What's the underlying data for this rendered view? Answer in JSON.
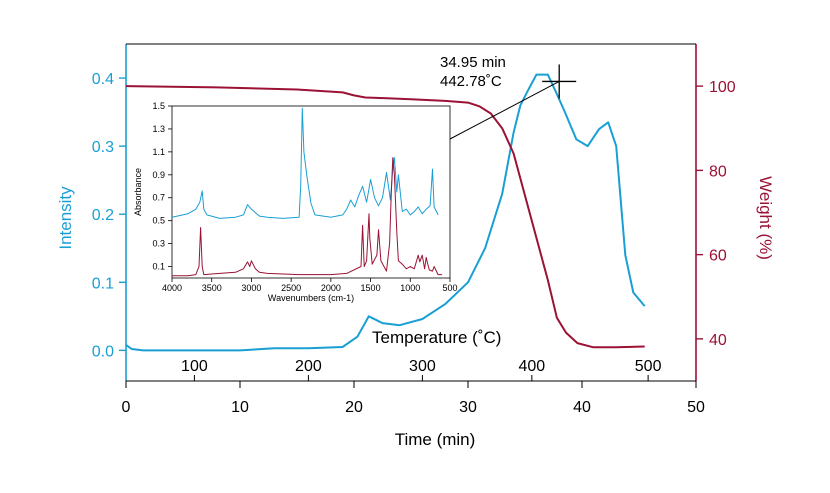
{
  "colors": {
    "intensity": "#1a9fd4",
    "weight": "#9b1235",
    "axis_black": "#000000"
  },
  "chart_data": [
    {
      "type": "line",
      "role": "main",
      "xlabel": "Time (min)",
      "xlim": [
        0,
        50
      ],
      "x_ticks": [
        0,
        10,
        20,
        30,
        40,
        50
      ],
      "secondary_xlabel": "Temperature (˚C)",
      "secondary_x_ticks": [
        {
          "label": "100",
          "time": 6
        },
        {
          "label": "200",
          "time": 16
        },
        {
          "label": "300",
          "time": 26
        },
        {
          "label": "400",
          "time": 35.6
        },
        {
          "label": "500",
          "time": 45.8
        }
      ],
      "ylabel_left": "Intensity",
      "ylim_left": [
        -0.045,
        0.45
      ],
      "y_ticks_left": [
        "0.0",
        "0.1",
        "0.2",
        "0.3",
        "0.4"
      ],
      "ylabel_right": "Weight (%)",
      "ylim_right": [
        30,
        110
      ],
      "y_ticks_right": [
        "40",
        "60",
        "80",
        "100"
      ],
      "series": [
        {
          "name": "Intensity",
          "axis": "left",
          "x": [
            0,
            0.5,
            1.5,
            5,
            10,
            13,
            16,
            19,
            20.3,
            21.3,
            22.5,
            24,
            26,
            28,
            30,
            31.5,
            33,
            34,
            34.6,
            35.2,
            36,
            37,
            37.7,
            38.5,
            39.5,
            40.5,
            41.5,
            42.3,
            43,
            43.8,
            44.5,
            45.5
          ],
          "y": [
            0.008,
            0.002,
            0.0,
            0.0,
            0.0,
            0.003,
            0.003,
            0.005,
            0.02,
            0.05,
            0.04,
            0.037,
            0.046,
            0.068,
            0.1,
            0.15,
            0.23,
            0.32,
            0.36,
            0.38,
            0.405,
            0.405,
            0.38,
            0.35,
            0.31,
            0.3,
            0.325,
            0.335,
            0.3,
            0.14,
            0.085,
            0.065
          ]
        },
        {
          "name": "Weight",
          "axis": "right",
          "x": [
            0,
            8,
            15,
            19,
            20,
            21,
            22,
            25,
            28,
            30,
            31,
            32,
            33,
            34,
            35,
            36,
            37,
            37.8,
            38.6,
            39.6,
            41,
            43,
            45.5
          ],
          "y": [
            100,
            99.7,
            99.2,
            98.5,
            97.8,
            97.3,
            97.2,
            96.9,
            96.5,
            96.1,
            95.2,
            93.5,
            90,
            84,
            74,
            64,
            54,
            45,
            41.5,
            39,
            38,
            38,
            38.2
          ]
        }
      ],
      "annotations": [
        {
          "text": "34.95 min",
          "line": 1
        },
        {
          "text": "442.78˚C",
          "line": 2
        }
      ],
      "marker_at": {
        "time": 38.0,
        "intensity": 0.395
      }
    },
    {
      "type": "line",
      "role": "inset",
      "ylabel": "Absorbance",
      "xlabel": "Wavenumbers (cm-1)",
      "xlim": [
        4000,
        500
      ],
      "x_ticks": [
        "4000",
        "3500",
        "3000",
        "2500",
        "2000",
        "1500",
        "1000",
        "500"
      ],
      "ylim": [
        0,
        1.5
      ],
      "y_ticks": [
        "0.1",
        "0.3",
        "0.5",
        "0.7",
        "0.9",
        "1.1",
        "1.3",
        "1.5"
      ],
      "series": [
        {
          "name": "",
          "color": "intensity",
          "x": [
            4000,
            3800,
            3700,
            3650,
            3620,
            3600,
            3560,
            3400,
            3200,
            3100,
            3050,
            3000,
            2950,
            2900,
            2800,
            2600,
            2400,
            2380,
            2360,
            2340,
            2300,
            2250,
            2200,
            2000,
            1850,
            1800,
            1750,
            1700,
            1650,
            1600,
            1550,
            1500,
            1450,
            1400,
            1350,
            1300,
            1250,
            1220,
            1200,
            1170,
            1150,
            1100,
            1050,
            1000,
            950,
            900,
            850,
            800,
            750,
            720,
            700,
            650
          ],
          "y": [
            0.53,
            0.56,
            0.6,
            0.66,
            0.76,
            0.6,
            0.55,
            0.52,
            0.53,
            0.55,
            0.64,
            0.6,
            0.57,
            0.54,
            0.53,
            0.52,
            0.53,
            0.8,
            1.48,
            1.1,
            0.88,
            0.65,
            0.55,
            0.53,
            0.55,
            0.6,
            0.68,
            0.62,
            0.72,
            0.8,
            0.66,
            0.86,
            0.7,
            0.63,
            0.7,
            0.92,
            0.68,
            0.95,
            1.05,
            0.75,
            0.9,
            0.58,
            0.6,
            0.55,
            0.58,
            0.62,
            0.56,
            0.6,
            0.63,
            0.95,
            0.62,
            0.55
          ]
        },
        {
          "name": "",
          "color": "weight",
          "x": [
            4000,
            3800,
            3700,
            3660,
            3640,
            3620,
            3600,
            3400,
            3200,
            3100,
            3050,
            3020,
            3000,
            2950,
            2900,
            2800,
            2400,
            2000,
            1800,
            1620,
            1600,
            1580,
            1550,
            1520,
            1510,
            1480,
            1420,
            1400,
            1370,
            1300,
            1260,
            1240,
            1220,
            1200,
            1170,
            1150,
            1100,
            1050,
            1000,
            950,
            900,
            880,
            850,
            820,
            800,
            780,
            760,
            720,
            700,
            650,
            600
          ],
          "y": [
            0.02,
            0.02,
            0.03,
            0.1,
            0.44,
            0.1,
            0.03,
            0.04,
            0.05,
            0.08,
            0.14,
            0.1,
            0.15,
            0.08,
            0.05,
            0.04,
            0.03,
            0.03,
            0.04,
            0.1,
            0.46,
            0.1,
            0.15,
            0.56,
            0.35,
            0.12,
            0.2,
            0.42,
            0.15,
            0.06,
            0.3,
            0.72,
            1.05,
            0.9,
            0.4,
            0.15,
            0.12,
            0.08,
            0.1,
            0.08,
            0.2,
            0.14,
            0.2,
            0.08,
            0.18,
            0.12,
            0.07,
            0.06,
            0.1,
            0.03,
            0.03
          ]
        }
      ]
    }
  ]
}
